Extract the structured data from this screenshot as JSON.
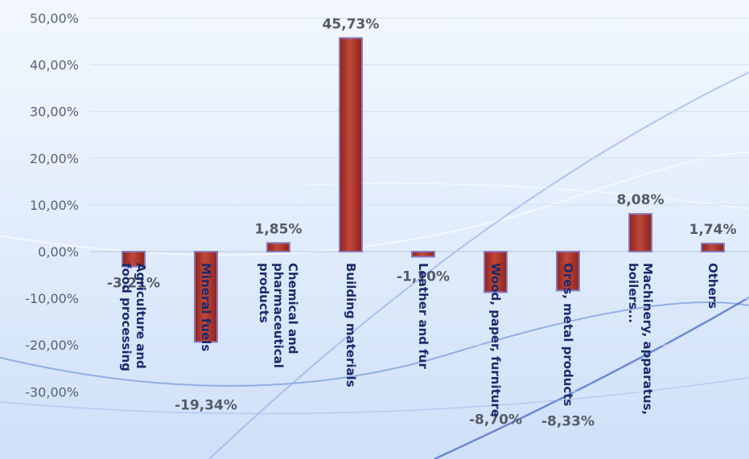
{
  "chart_data": {
    "type": "bar",
    "categories": [
      [
        "Agriculture and",
        "food processing"
      ],
      [
        "Mineral fuels"
      ],
      [
        "Chemical and",
        "pharmaceutical",
        "products"
      ],
      [
        "Building materials"
      ],
      [
        "Leather and fur"
      ],
      [
        "Wood, paper, furniture"
      ],
      [
        "Ores, metal products"
      ],
      [
        "Machinery, apparatus,",
        "boilers..."
      ],
      [
        "Others"
      ]
    ],
    "values": [
      -3.21,
      -19.34,
      1.85,
      45.73,
      -1.1,
      -8.7,
      -8.33,
      8.08,
      1.74
    ],
    "data_labels": [
      "-3,21%",
      "-19,34%",
      "1,85%",
      "45,73%",
      "-1,10%",
      "-8,70%",
      "-8,33%",
      "8,08%",
      "1,74%"
    ],
    "y_ticks": [
      50,
      40,
      30,
      20,
      10,
      0,
      -10,
      -20,
      -30
    ],
    "y_tick_labels": [
      "50,00%",
      "40,00%",
      "30,00%",
      "20,00%",
      "10,00%",
      "0,00%",
      "-10,00%",
      "-20,00%",
      "-30,00%"
    ],
    "ylim": [
      -30,
      50
    ],
    "grid": true,
    "bar_color": "#b5372c",
    "bar_edge_color": "#8a79c0"
  }
}
